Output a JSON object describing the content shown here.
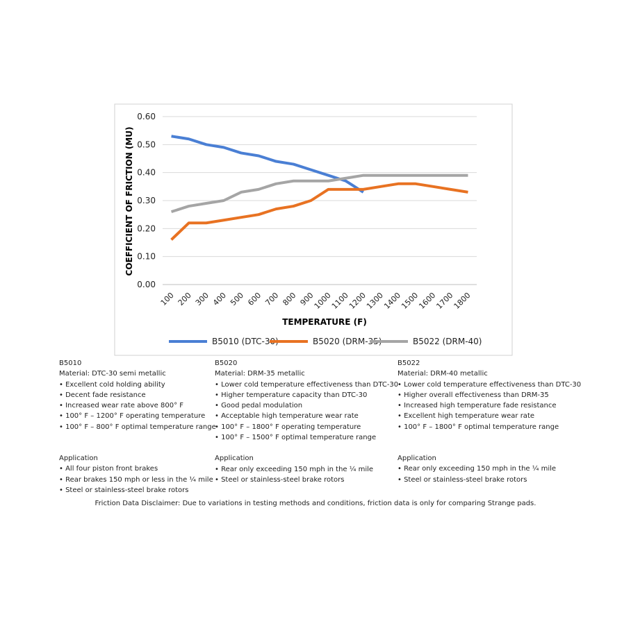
{
  "chart_data": {
    "type": "line",
    "y_label": "COEFFICIENT OF FRICTION (MU)",
    "x_label": "TEMPERATURE (F)",
    "categories": [
      "100",
      "200",
      "300",
      "400",
      "500",
      "600",
      "700",
      "800",
      "900",
      "1000",
      "1100",
      "1200",
      "1300",
      "1400",
      "1500",
      "1600",
      "1700",
      "1800"
    ],
    "series": [
      {
        "name": "B5010 (DTC-30)",
        "color": "#4a7fd4",
        "values": [
          0.53,
          0.52,
          0.5,
          0.49,
          0.47,
          0.46,
          0.44,
          0.43,
          0.41,
          0.39,
          0.37,
          0.33,
          null,
          null,
          null,
          null,
          null,
          null
        ]
      },
      {
        "name": "B5020 (DRM-35)",
        "color": "#e87222",
        "values": [
          0.16,
          0.22,
          0.22,
          0.23,
          0.24,
          0.25,
          0.27,
          0.28,
          0.3,
          0.34,
          0.34,
          0.34,
          0.35,
          0.36,
          0.36,
          0.35,
          0.34,
          0.33
        ]
      },
      {
        "name": "B5022 (DRM-40)",
        "color": "#a5a5a5",
        "values": [
          0.26,
          0.28,
          0.29,
          0.3,
          0.33,
          0.34,
          0.36,
          0.37,
          0.37,
          0.37,
          0.38,
          0.39,
          0.39,
          0.39,
          0.39,
          0.39,
          0.39,
          0.39
        ]
      }
    ],
    "ylim": [
      0,
      0.6
    ],
    "yticks": [
      {
        "value": 0,
        "label": "0.00"
      },
      {
        "value": 0.1,
        "label": "0.10"
      },
      {
        "value": 0.2,
        "label": "0.20"
      },
      {
        "value": 0.3,
        "label": "0.30"
      },
      {
        "value": 0.4,
        "label": "0.40"
      },
      {
        "value": 0.5,
        "label": "0.50"
      },
      {
        "value": 0.6,
        "label": "0.60"
      }
    ],
    "grid": true,
    "legend": "bottom"
  },
  "products": [
    {
      "title": "B5010",
      "material": "Material: DTC-30 semi metallic",
      "features": [
        "• Excellent cold holding ability",
        "• Decent fade resistance",
        "• Increased wear rate above 800° F",
        "• 100° F – 1200° F operating temperature",
        "• 100° F – 800° F optimal temperature range"
      ],
      "application_heading": "Application",
      "applications": [
        "• All four piston front brakes",
        "• Rear brakes 150 mph or less in the ¼ mile",
        "• Steel or stainless-steel brake rotors"
      ]
    },
    {
      "title": "B5020",
      "material": "Material: DRM-35 metallic",
      "features": [
        "• Lower cold temperature effectiveness than DTC-30",
        "• Higher temperature capacity than DTC-30",
        "• Good pedal modulation",
        "• Acceptable high temperature wear rate",
        "• 100° F – 1800° F operating temperature",
        "• 100° F – 1500° F optimal temperature range"
      ],
      "application_heading": "Application",
      "applications": [
        "• Rear only exceeding 150 mph in the ¼ mile",
        "• Steel or stainless-steel brake rotors"
      ]
    },
    {
      "title": "B5022",
      "material": "Material: DRM-40 metallic",
      "features": [
        "• Lower cold temperature effectiveness than DTC-30",
        "• Higher overall effectiveness than DRM-35",
        "• Increased high temperature fade resistance",
        "• Excellent high temperature wear rate",
        "• 100° F – 1800° F optimal temperature range"
      ],
      "application_heading": "Application",
      "applications": [
        "• Rear only exceeding 150 mph in the ¼ mile",
        "• Steel or stainless-steel brake rotors"
      ]
    }
  ],
  "disclaimer": "Friction Data Disclaimer:  Due to variations in testing methods and conditions, friction data is only for comparing Strange pads."
}
